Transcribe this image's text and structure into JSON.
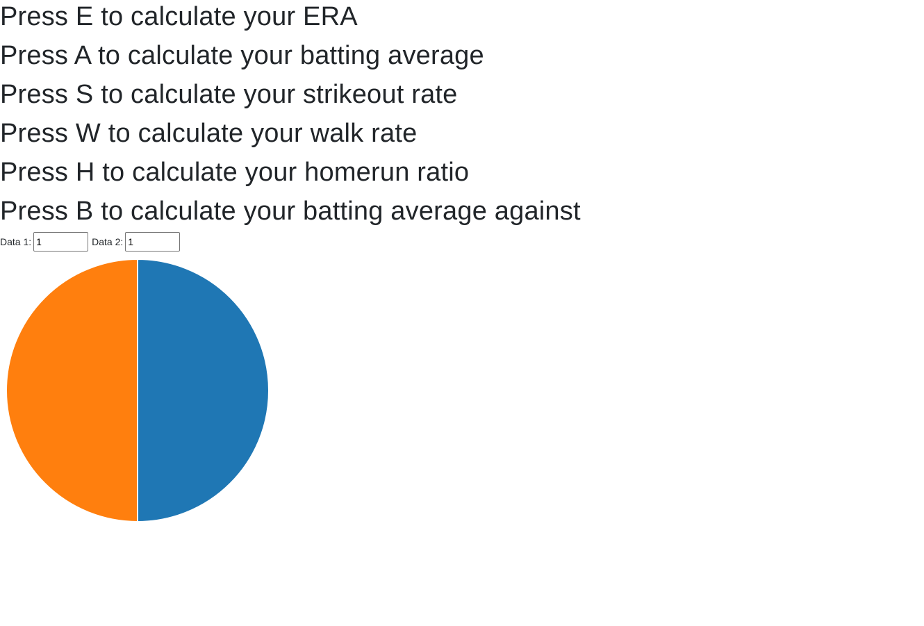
{
  "instructions": [
    "Press E to calculate your ERA",
    "Press A to calculate your batting average",
    "Press S to calculate your strikeout rate",
    "Press W to calculate your walk rate",
    "Press H to calculate your homerun ratio",
    "Press B to calculate your batting average against"
  ],
  "form": {
    "data1_label": "Data 1:",
    "data1_value": "1",
    "data2_label": "Data 2:",
    "data2_value": "1"
  },
  "chart_data": {
    "type": "pie",
    "values": [
      1,
      1
    ],
    "colors": [
      "#1f77b4",
      "#ff7f0e"
    ]
  }
}
